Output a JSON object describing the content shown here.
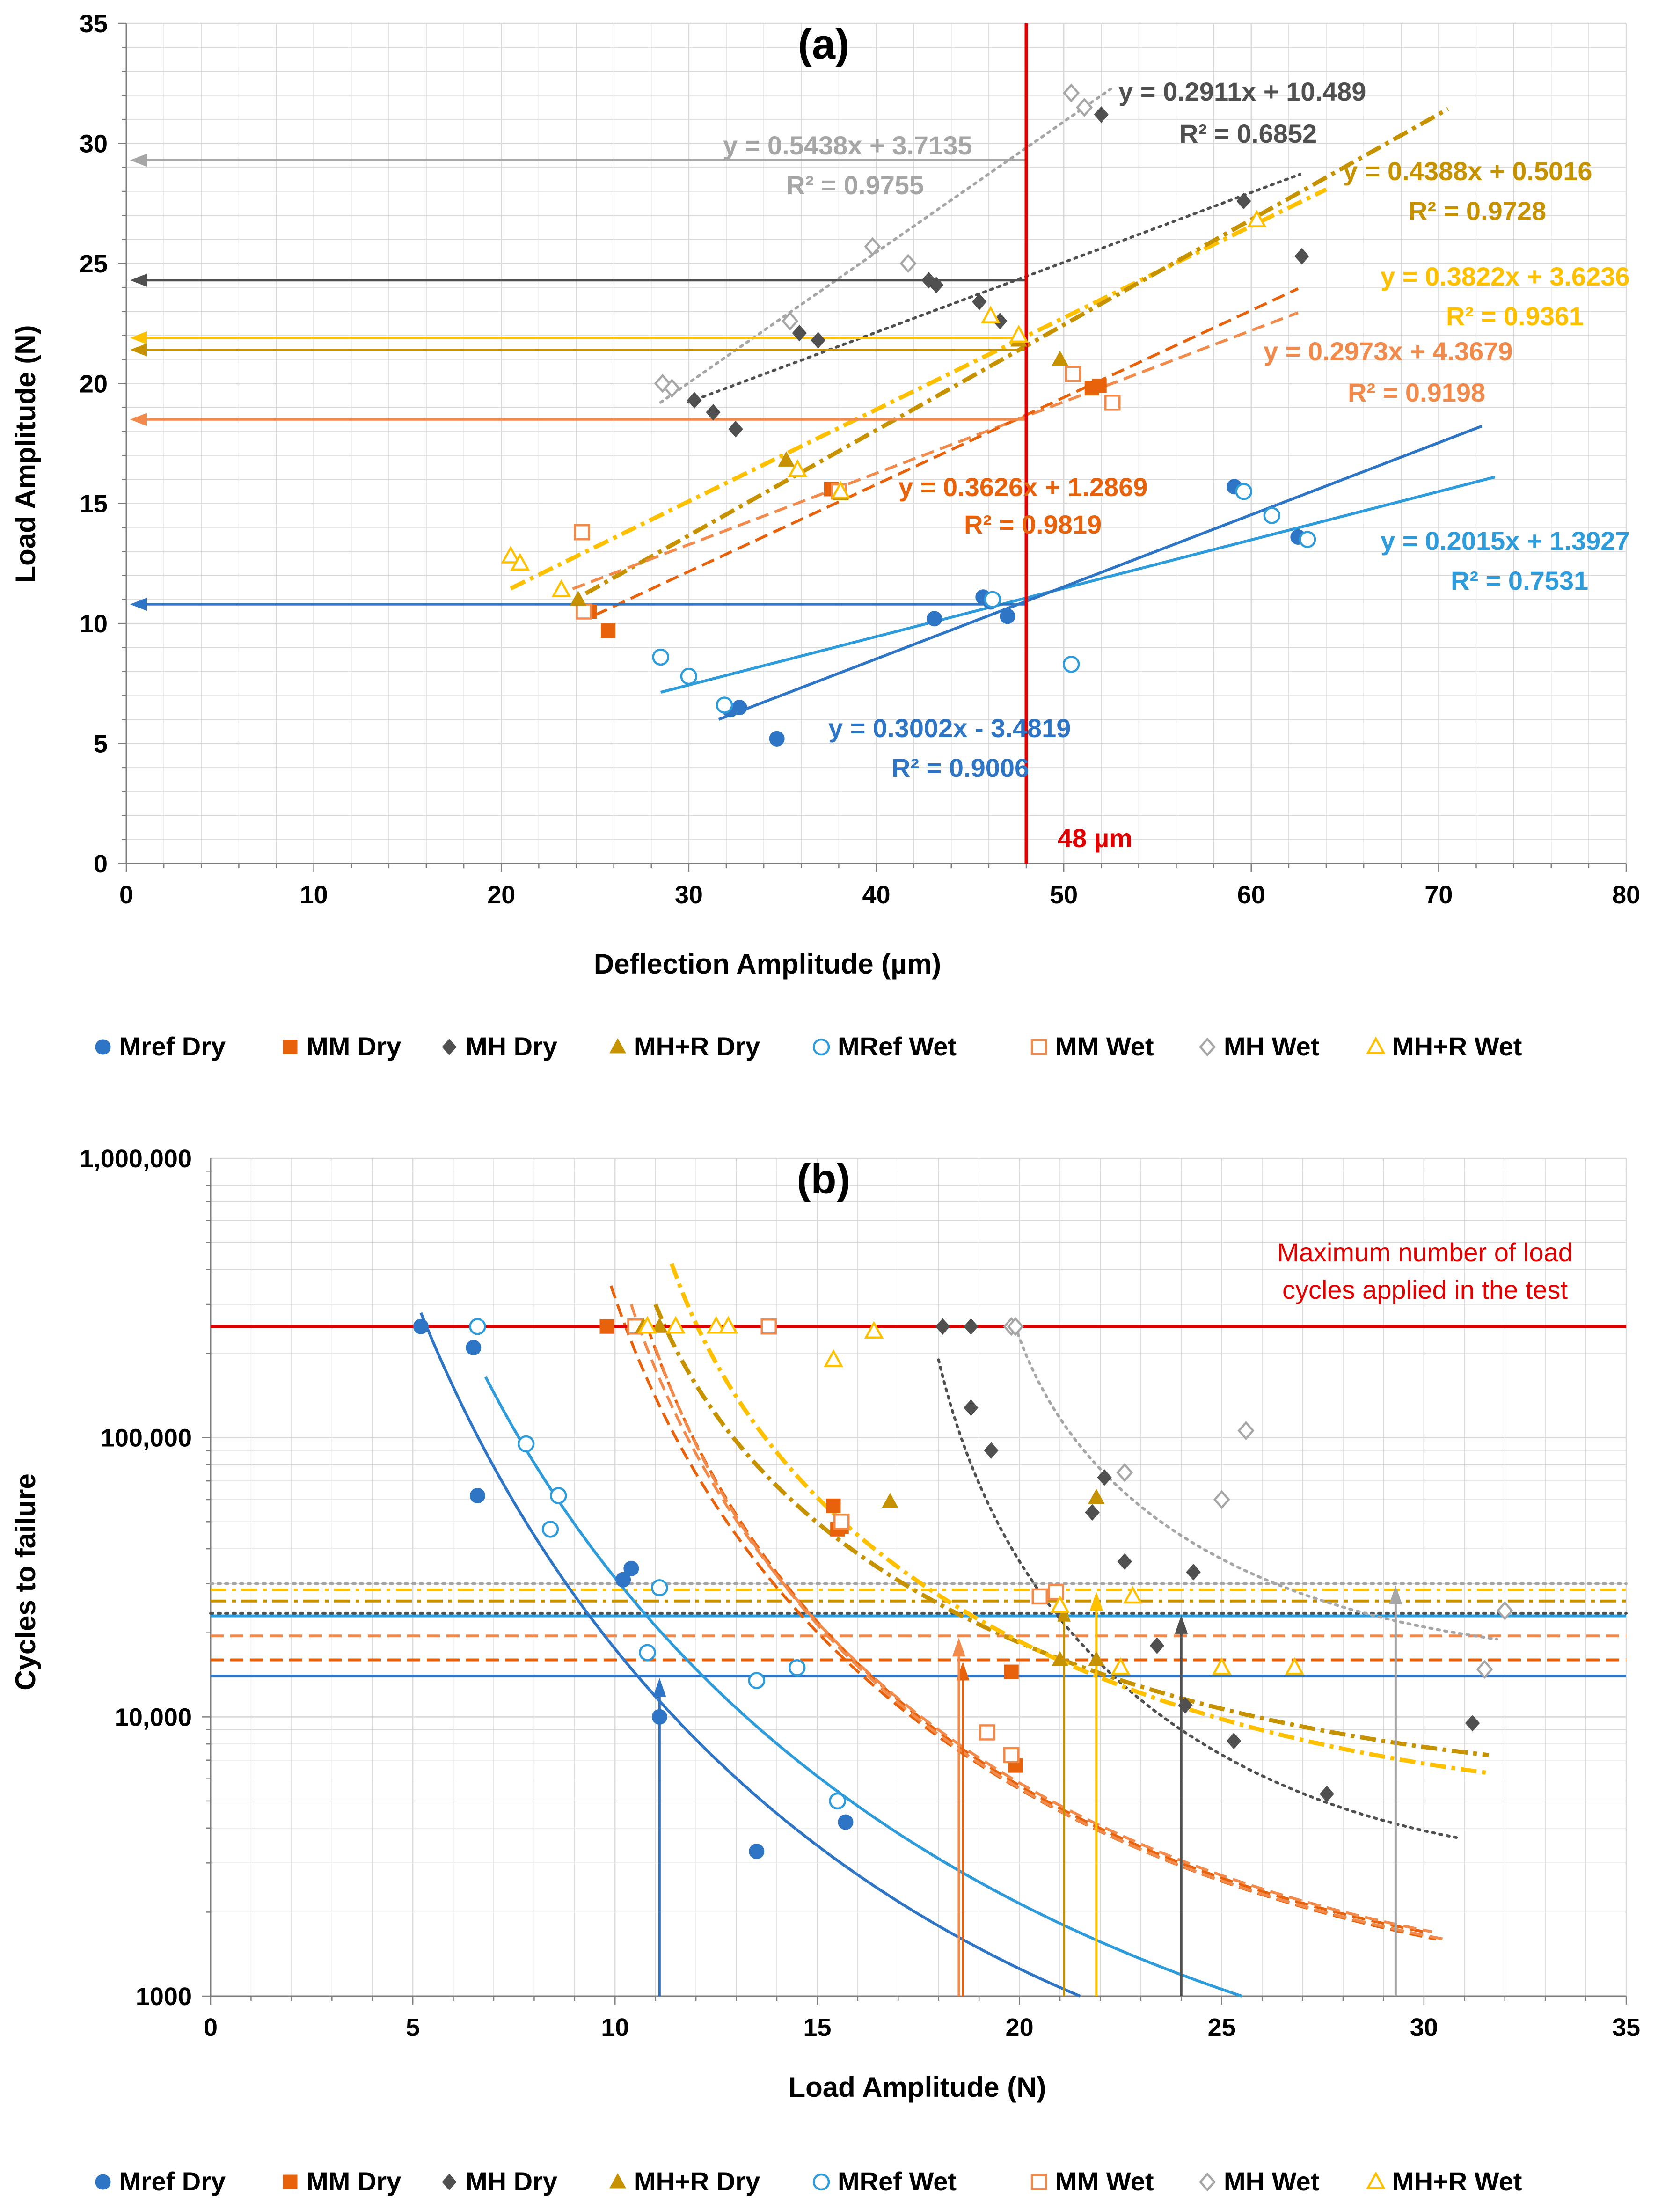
{
  "colors": {
    "mref_dry": "#2E75C6",
    "mm_dry": "#E8620C",
    "mh_dry": "#505050",
    "mhr_dry": "#C79200",
    "mref_wet": "#2E9BDA",
    "mm_wet": "#F18A4A",
    "mh_wet": "#A6A6A6",
    "mhr_wet": "#FFC000",
    "red": "#E00000",
    "grid": "#D9D9D9"
  },
  "legend": [
    {
      "key": "mref_dry",
      "label": "Mref Dry",
      "marker": "circle",
      "filled": true
    },
    {
      "key": "mm_dry",
      "label": "MM Dry",
      "marker": "square",
      "filled": true
    },
    {
      "key": "mh_dry",
      "label": "MH Dry",
      "marker": "diamond",
      "filled": true
    },
    {
      "key": "mhr_dry",
      "label": "MH+R Dry",
      "marker": "triangle",
      "filled": true
    },
    {
      "key": "mref_wet",
      "label": "MRef Wet",
      "marker": "circle",
      "filled": false
    },
    {
      "key": "mm_wet",
      "label": "MM Wet",
      "marker": "square",
      "filled": false
    },
    {
      "key": "mh_wet",
      "label": "MH Wet",
      "marker": "diamond",
      "filled": false
    },
    {
      "key": "mhr_wet",
      "label": "MH+R Wet",
      "marker": "triangle",
      "filled": false
    }
  ],
  "chart_data": [
    {
      "panel": "a",
      "type": "scatter",
      "title": "(a)",
      "xlabel": "Deflection Amplitude (µm)",
      "ylabel": "Load Amplitude (N)",
      "xlim": [
        0,
        80
      ],
      "ylim": [
        0,
        35
      ],
      "xticks": [
        0,
        10,
        20,
        30,
        40,
        50,
        60,
        70,
        80
      ],
      "yticks": [
        0,
        5,
        10,
        15,
        20,
        25,
        30,
        35
      ],
      "vline": {
        "x": 48,
        "label": "48 µm"
      },
      "series": [
        {
          "key": "mref_dry",
          "points": [
            [
              32.2,
              6.4
            ],
            [
              32.7,
              6.5
            ],
            [
              34.7,
              5.2
            ],
            [
              43.1,
              10.2
            ],
            [
              45.7,
              11.1
            ],
            [
              46.1,
              10.9
            ],
            [
              47.0,
              10.3
            ],
            [
              59.1,
              15.7
            ],
            [
              62.5,
              13.6
            ]
          ],
          "fit": {
            "slope": 0.3002,
            "intercept": -3.4819,
            "x": [
              31.6,
              72.3
            ],
            "style": "solid"
          },
          "eq": "y = 0.3002x - 3.4819",
          "r2": "R² = 0.9006"
        },
        {
          "key": "mref_wet",
          "points": [
            [
              28.5,
              8.6
            ],
            [
              30.0,
              7.8
            ],
            [
              31.9,
              6.6
            ],
            [
              46.2,
              11.0
            ],
            [
              50.4,
              8.3
            ],
            [
              59.6,
              15.5
            ],
            [
              61.1,
              14.5
            ],
            [
              63.0,
              13.5
            ]
          ],
          "fit": {
            "slope": 0.2015,
            "intercept": 1.3927,
            "x": [
              28.5,
              73.0
            ],
            "style": "solid"
          },
          "eq": "y = 0.2015x + 1.3927",
          "r2": "R² = 0.7531"
        },
        {
          "key": "mm_dry",
          "points": [
            [
              24.7,
              10.5
            ],
            [
              25.7,
              9.7
            ],
            [
              37.6,
              15.6
            ],
            [
              51.5,
              19.8
            ],
            [
              51.9,
              19.9
            ]
          ],
          "fit": {
            "slope": 0.3626,
            "intercept": 1.2869,
            "x": [
              25.0,
              62.5
            ],
            "style": "dash"
          },
          "eq": "y = 0.3626x + 1.2869",
          "r2": "R² = 0.9819"
        },
        {
          "key": "mm_wet",
          "points": [
            [
              24.3,
              13.8
            ],
            [
              24.4,
              10.5
            ],
            [
              38.0,
              15.5
            ],
            [
              50.5,
              20.4
            ],
            [
              52.6,
              19.2
            ]
          ],
          "fit": {
            "slope": 0.2973,
            "intercept": 4.3679,
            "x": [
              23.8,
              62.5
            ],
            "style": "dash"
          },
          "eq": "y = 0.2973x + 4.3679",
          "r2": "R² = 0.9198"
        },
        {
          "key": "mh_dry",
          "points": [
            [
              30.3,
              19.3
            ],
            [
              31.3,
              18.8
            ],
            [
              32.5,
              18.1
            ],
            [
              36.9,
              21.8
            ],
            [
              35.9,
              22.1
            ],
            [
              42.8,
              24.3
            ],
            [
              43.2,
              24.1
            ],
            [
              45.5,
              23.4
            ],
            [
              46.6,
              22.6
            ],
            [
              52.0,
              31.2
            ],
            [
              59.6,
              27.6
            ],
            [
              62.7,
              25.3
            ]
          ],
          "fit": {
            "slope": 0.2911,
            "intercept": 10.489,
            "x": [
              30.0,
              62.6
            ],
            "style": "dot"
          },
          "eq": "y = 0.2911x + 10.489",
          "r2": "R² = 0.6852"
        },
        {
          "key": "mh_wet",
          "points": [
            [
              28.6,
              20.0
            ],
            [
              29.1,
              19.8
            ],
            [
              35.4,
              22.6
            ],
            [
              39.8,
              25.7
            ],
            [
              41.7,
              25.0
            ],
            [
              50.4,
              32.1
            ],
            [
              51.1,
              31.5
            ]
          ],
          "fit": {
            "slope": 0.5438,
            "intercept": 3.7135,
            "x": [
              28.5,
              52.5
            ],
            "style": "dot"
          },
          "eq": "y = 0.5438x + 3.7135",
          "r2": "R² = 0.9755"
        },
        {
          "key": "mhr_dry",
          "points": [
            [
              24.1,
              11.0
            ],
            [
              35.2,
              16.8
            ],
            [
              38.1,
              15.4
            ],
            [
              47.6,
              21.8
            ],
            [
              49.8,
              21.0
            ]
          ],
          "fit": {
            "slope": 0.4388,
            "intercept": 0.5016,
            "x": [
              24.5,
              70.5
            ],
            "style": "dashdot"
          },
          "eq": "y = 0.4388x + 0.5016",
          "r2": "R² = 0.9728"
        },
        {
          "key": "mhr_wet",
          "points": [
            [
              20.5,
              12.8
            ],
            [
              21.0,
              12.5
            ],
            [
              23.2,
              11.4
            ],
            [
              35.8,
              16.4
            ],
            [
              38.1,
              15.5
            ],
            [
              46.1,
              22.8
            ],
            [
              47.6,
              22.0
            ],
            [
              60.3,
              26.8
            ]
          ],
          "fit": {
            "slope": 0.3822,
            "intercept": 3.6236,
            "x": [
              20.5,
              64.0
            ],
            "style": "dashdot"
          },
          "eq": "y = 0.3822x + 3.6236",
          "r2": "R² = 0.9361"
        }
      ],
      "arrows": [
        {
          "key": "mh_wet",
          "y": 29.3
        },
        {
          "key": "mh_dry",
          "y": 24.3
        },
        {
          "key": "mhr_wet",
          "y": 21.9
        },
        {
          "key": "mhr_dry",
          "y": 21.4
        },
        {
          "key": "mm_wet",
          "y": 18.5
        },
        {
          "key": "mref_wet",
          "y": 10.8
        },
        {
          "key": "mref_dry",
          "y": 10.8
        }
      ]
    },
    {
      "panel": "b",
      "type": "scatter",
      "title": "(b)",
      "xlabel": "Load Amplitude (N)",
      "ylabel": "Cycles to failure",
      "xlim": [
        0,
        35
      ],
      "ylim": [
        1000,
        1000000
      ],
      "yscale": "log",
      "xticks": [
        0,
        5,
        10,
        15,
        20,
        25,
        30,
        35
      ],
      "yticks": [
        1000,
        10000,
        100000,
        1000000
      ],
      "ytick_labels": [
        "1000",
        "10,000",
        "100,000",
        "1,000,000"
      ],
      "max_line": {
        "y": 250000,
        "label": [
          "Maximum number of load",
          "cycles applied in the test"
        ]
      },
      "series": [
        {
          "key": "mref_dry",
          "points": [
            [
              5.2,
              250000
            ],
            [
              6.5,
              210000
            ],
            [
              6.6,
              62000
            ],
            [
              10.2,
              31000
            ],
            [
              10.4,
              34000
            ],
            [
              11.1,
              10000
            ],
            [
              13.5,
              3300
            ],
            [
              15.7,
              4200
            ]
          ],
          "curve": {
            "from": [
              5.2,
              280000
            ],
            "to": [
              21.5,
              1000
            ],
            "bend": 0.5,
            "style": "solid"
          },
          "hline": 14000,
          "vx": 11.1
        },
        {
          "key": "mref_wet",
          "points": [
            [
              6.6,
              250000
            ],
            [
              7.8,
              95000
            ],
            [
              8.4,
              47000
            ],
            [
              8.6,
              62000
            ],
            [
              10.8,
              17000
            ],
            [
              11.1,
              29000
            ],
            [
              13.5,
              13500
            ],
            [
              14.5,
              15000
            ],
            [
              15.5,
              5000
            ]
          ],
          "curve": {
            "from": [
              6.8,
              165000
            ],
            "to": [
              25.5,
              1000
            ],
            "bend": 0.5,
            "style": "solid"
          },
          "hline": 23000
        },
        {
          "key": "mm_dry",
          "points": [
            [
              9.8,
              250000
            ],
            [
              15.4,
              57000
            ],
            [
              15.5,
              47000
            ],
            [
              15.6,
              48000
            ],
            [
              19.8,
              14500
            ],
            [
              19.9,
              6700
            ]
          ],
          "curves": [
            {
              "from": [
                9.9,
                350000
              ],
              "to": [
                30.3,
                1600
              ],
              "bend": 0.35,
              "style": "dash"
            },
            {
              "from": [
                10.8,
                250000
              ],
              "to": [
                30.0,
                1700
              ],
              "bend": 0.35,
              "style": "dash"
            }
          ],
          "hline": 16000,
          "vx": 18.6
        },
        {
          "key": "mm_wet",
          "points": [
            [
              10.5,
              250000
            ],
            [
              13.8,
              250000
            ],
            [
              15.6,
              50000
            ],
            [
              19.2,
              8800
            ],
            [
              19.8,
              7300
            ],
            [
              20.5,
              27000
            ],
            [
              20.9,
              28000
            ]
          ],
          "curves": [
            {
              "from": [
                10.4,
                300000
              ],
              "to": [
                30.2,
                1700
              ],
              "bend": 0.35,
              "style": "dash"
            },
            {
              "from": [
                11.0,
                210000
              ],
              "to": [
                30.5,
                1600
              ],
              "bend": 0.35,
              "style": "dash"
            }
          ],
          "hline": 19500,
          "vx": 18.5
        },
        {
          "key": "mh_dry",
          "points": [
            [
              18.1,
              250000
            ],
            [
              18.8,
              250000
            ],
            [
              18.8,
              128000
            ],
            [
              19.3,
              90000
            ],
            [
              21.8,
              54000
            ],
            [
              22.1,
              72000
            ],
            [
              22.6,
              36000
            ],
            [
              23.4,
              18000
            ],
            [
              24.1,
              11000
            ],
            [
              24.3,
              33000
            ],
            [
              25.3,
              8200
            ],
            [
              27.6,
              5300
            ],
            [
              31.2,
              9500
            ]
          ],
          "curve": {
            "from": [
              18.0,
              190000
            ],
            "to": [
              30.8,
              3700
            ],
            "bend": 0.3,
            "style": "dot"
          },
          "hline": 23500,
          "vx": 24.0
        },
        {
          "key": "mh_wet",
          "points": [
            [
              19.8,
              250000
            ],
            [
              19.9,
              250000
            ],
            [
              22.6,
              75000
            ],
            [
              25.0,
              60000
            ],
            [
              25.6,
              106000
            ],
            [
              31.5,
              14800
            ],
            [
              32.0,
              24000
            ]
          ],
          "curve": {
            "from": [
              19.9,
              250000
            ],
            "to": [
              31.8,
              19000
            ],
            "bend": 0.3,
            "style": "dot"
          },
          "hline": 30000,
          "vx": 29.3
        },
        {
          "key": "mhr_dry",
          "points": [
            [
              10.7,
              250000
            ],
            [
              11.1,
              250000
            ],
            [
              16.8,
              59000
            ],
            [
              21.0,
              16000
            ],
            [
              21.9,
              16000
            ],
            [
              21.9,
              61000
            ]
          ],
          "curve": {
            "from": [
              11.0,
              300000
            ],
            "to": [
              31.6,
              7300
            ],
            "bend": 0.3,
            "style": "dashdot"
          },
          "hline": 26000,
          "vx": 21.1
        },
        {
          "key": "mhr_wet",
          "points": [
            [
              10.8,
              250000
            ],
            [
              11.5,
              250000
            ],
            [
              12.5,
              250000
            ],
            [
              12.8,
              250000
            ],
            [
              15.4,
              190000
            ],
            [
              16.4,
              240000
            ],
            [
              21.0,
              25000
            ],
            [
              22.5,
              15000
            ],
            [
              22.8,
              27000
            ],
            [
              25.0,
              15000
            ],
            [
              26.8,
              15000
            ]
          ],
          "curve": {
            "from": [
              11.4,
              420000
            ],
            "to": [
              31.6,
              6300
            ],
            "bend": 0.3,
            "style": "dashdot"
          },
          "hline": 28500,
          "vx": 21.9
        }
      ]
    }
  ]
}
